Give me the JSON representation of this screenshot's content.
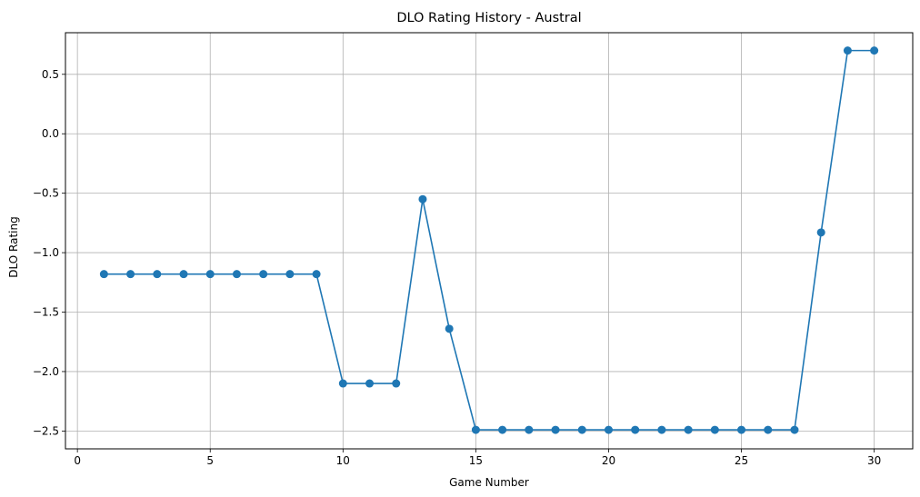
{
  "chart_data": {
    "type": "line",
    "title": "DLO Rating History - Austral",
    "xlabel": "Game Number",
    "ylabel": "DLO Rating",
    "xlim": [
      -0.45,
      31.45
    ],
    "ylim": [
      -2.65,
      0.85
    ],
    "xticks": [
      0,
      5,
      10,
      15,
      20,
      25,
      30
    ],
    "xtick_labels": [
      "0",
      "5",
      "10",
      "15",
      "20",
      "25",
      "30"
    ],
    "yticks": [
      -2.5,
      -2.0,
      -1.5,
      -1.0,
      -0.5,
      0.0,
      0.5
    ],
    "ytick_labels": [
      "−2.5",
      "−2.0",
      "−1.5",
      "−1.0",
      "−0.5",
      "0.0",
      "0.5"
    ],
    "grid": true,
    "marker": "circle",
    "line_color": "#1f77b4",
    "series": [
      {
        "x": [
          1,
          2,
          3,
          4,
          5,
          6,
          7,
          8,
          9,
          10,
          11,
          12,
          13,
          14,
          15,
          16,
          17,
          18,
          19,
          20,
          21,
          22,
          23,
          24,
          25,
          26,
          27,
          28,
          29,
          30
        ],
        "values": [
          -1.18,
          -1.18,
          -1.18,
          -1.18,
          -1.18,
          -1.18,
          -1.18,
          -1.18,
          -1.18,
          -2.1,
          -2.1,
          -2.1,
          -0.55,
          -1.64,
          -2.49,
          -2.49,
          -2.49,
          -2.49,
          -2.49,
          -2.49,
          -2.49,
          -2.49,
          -2.49,
          -2.49,
          -2.49,
          -2.49,
          -2.49,
          -0.83,
          0.7,
          0.7
        ]
      }
    ]
  }
}
